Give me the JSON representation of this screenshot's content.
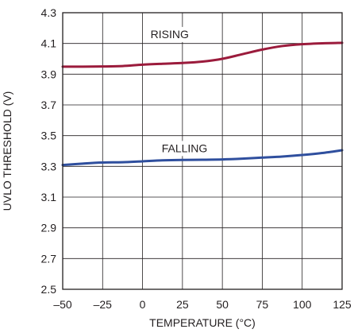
{
  "chart_data": {
    "type": "line",
    "title": "",
    "xlabel": "TEMPERATURE (°C)",
    "ylabel": "UVLO THRESHOLD (V)",
    "xlim": [
      -50,
      125
    ],
    "ylim": [
      2.5,
      4.3
    ],
    "grid": true,
    "x_ticks": [
      -50,
      -25,
      0,
      25,
      50,
      75,
      100,
      125
    ],
    "y_ticks": [
      2.5,
      2.7,
      2.9,
      3.1,
      3.3,
      3.5,
      3.7,
      3.9,
      4.1,
      4.3
    ],
    "x_tick_labels": [
      "–50",
      "–25",
      "0",
      "25",
      "50",
      "75",
      "100",
      "125"
    ],
    "y_tick_labels": [
      "2.5",
      "2.7",
      "2.9",
      "3.1",
      "3.3",
      "3.5",
      "3.7",
      "3.9",
      "4.1",
      "4.3"
    ],
    "series": [
      {
        "name": "RISING",
        "color": "#9b1b3c",
        "x": [
          -50,
          -37.5,
          -25,
          -12.5,
          0,
          12.5,
          25,
          37.5,
          50,
          62.5,
          75,
          87.5,
          100,
          112.5,
          125
        ],
        "y": [
          3.949,
          3.949,
          3.95,
          3.953,
          3.962,
          3.968,
          3.973,
          3.982,
          4.0,
          4.03,
          4.06,
          4.083,
          4.095,
          4.101,
          4.104
        ]
      },
      {
        "name": "FALLING",
        "color": "#2f4f9e",
        "x": [
          -50,
          -37.5,
          -25,
          -12.5,
          0,
          12.5,
          25,
          37.5,
          50,
          62.5,
          75,
          87.5,
          100,
          112.5,
          125
        ],
        "y": [
          3.309,
          3.318,
          3.325,
          3.327,
          3.333,
          3.339,
          3.342,
          3.343,
          3.345,
          3.35,
          3.357,
          3.364,
          3.374,
          3.387,
          3.405
        ]
      }
    ]
  }
}
